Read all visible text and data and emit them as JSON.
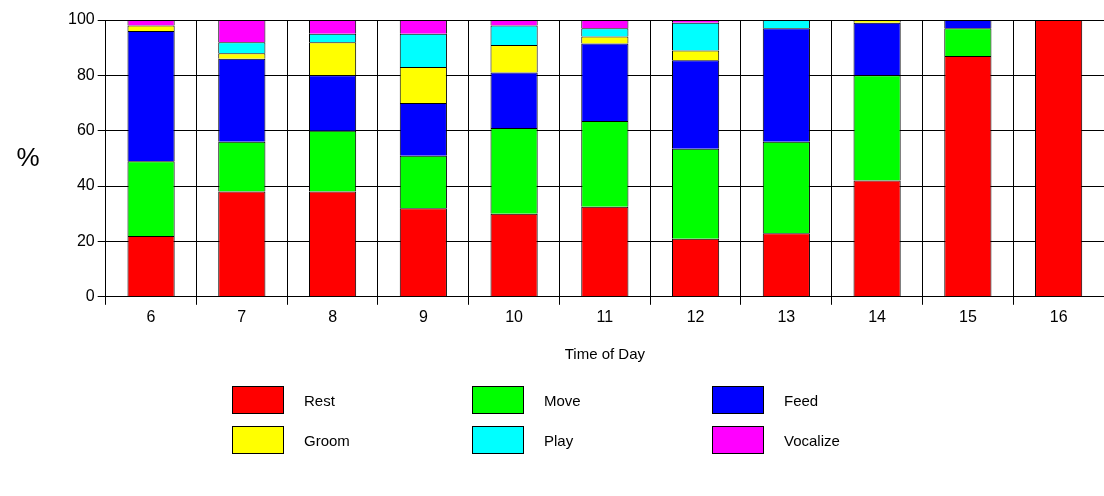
{
  "chart_data": {
    "type": "bar",
    "stacked": true,
    "xlabel": "Time of Day",
    "ylabel": "%",
    "categories": [
      "6",
      "7",
      "8",
      "9",
      "10",
      "11",
      "12",
      "13",
      "14",
      "15",
      "16"
    ],
    "series": [
      {
        "name": "Rest",
        "color": "#ff0000",
        "values": [
          22,
          38,
          38,
          32,
          30,
          32.5,
          21,
          23,
          42,
          87,
          100
        ]
      },
      {
        "name": "Move",
        "color": "#00ff00",
        "values": [
          27,
          18,
          22,
          19,
          31,
          31,
          32.5,
          33,
          38,
          10,
          0
        ]
      },
      {
        "name": "Feed",
        "color": "#0000ff",
        "values": [
          47,
          30,
          20,
          19,
          20,
          28,
          32,
          41,
          19,
          3,
          0
        ]
      },
      {
        "name": "Groom",
        "color": "#ffff00",
        "values": [
          2,
          2,
          12,
          13,
          10,
          2.5,
          3.5,
          0,
          1,
          0,
          0
        ]
      },
      {
        "name": "Play",
        "color": "#00ffff",
        "values": [
          0,
          4,
          3,
          12,
          7,
          3,
          10,
          3,
          0,
          0,
          0
        ]
      },
      {
        "name": "Vocalize",
        "color": "#ff00ff",
        "values": [
          2,
          8,
          5,
          5,
          2,
          3,
          1,
          0,
          0,
          0,
          0
        ]
      }
    ],
    "ylim": [
      0,
      100
    ],
    "yticks": [
      0,
      20,
      40,
      60,
      80,
      100
    ],
    "grid": true,
    "legend": "bottom"
  }
}
